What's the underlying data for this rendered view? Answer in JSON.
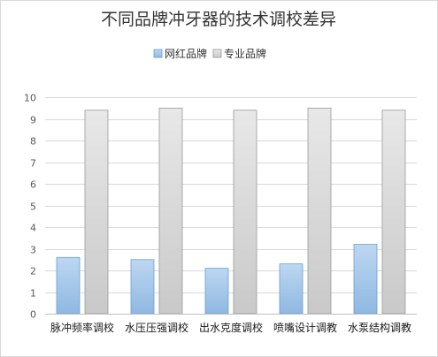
{
  "chart_data": {
    "type": "bar",
    "title": "不同品牌冲牙器的技术调校差异",
    "xlabel": "",
    "ylabel": "",
    "categories": [
      "脉冲频率调校",
      "水压压强调校",
      "出水克度调校",
      "喷嘴设计调教",
      "水泵结构调教"
    ],
    "series": [
      {
        "name": "网红品牌",
        "values": [
          2.6,
          2.5,
          2.1,
          2.3,
          3.2
        ],
        "color": "#9dc3e6"
      },
      {
        "name": "专业品牌",
        "values": [
          9.4,
          9.5,
          9.4,
          9.5,
          9.4
        ],
        "color": "#d9d9d9"
      }
    ],
    "ylim": [
      0,
      10
    ],
    "yticks": [
      0,
      1,
      2,
      3,
      4,
      5,
      6,
      7,
      8,
      9,
      10
    ],
    "grid": true,
    "legend_position": "top-center"
  }
}
